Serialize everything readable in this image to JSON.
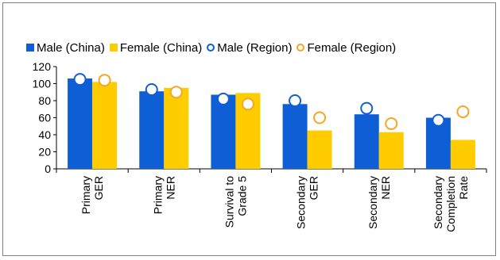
{
  "chart_data": {
    "type": "bar",
    "categories": [
      [
        "Primary",
        "GER"
      ],
      [
        "Primary",
        "NER"
      ],
      [
        "Survival to",
        "Grade 5"
      ],
      [
        "Secondary",
        "GER"
      ],
      [
        "Secondary",
        "NER"
      ],
      [
        "Secondary",
        "Completion",
        "Rate"
      ]
    ],
    "series": [
      {
        "name": "Male (China)",
        "kind": "bar",
        "color": "#0e5fd6",
        "values": [
          106,
          91,
          87,
          76,
          64,
          60
        ]
      },
      {
        "name": "Female (China)",
        "kind": "bar",
        "color": "#ffcc00",
        "values": [
          102,
          95,
          89,
          45,
          43,
          34
        ]
      },
      {
        "name": "Male (Region)",
        "kind": "marker",
        "color": "#0e5fd6",
        "values": [
          105,
          93,
          82,
          80,
          71,
          57
        ]
      },
      {
        "name": "Female (Region)",
        "kind": "marker",
        "color": "#f5a623",
        "values": [
          104,
          90,
          76,
          60,
          53,
          67
        ]
      }
    ],
    "ylim": [
      0,
      120
    ],
    "yticks": [
      "0",
      "20",
      "40",
      "60",
      "80",
      "100",
      "120"
    ],
    "legend_position": "top",
    "grid": false
  }
}
